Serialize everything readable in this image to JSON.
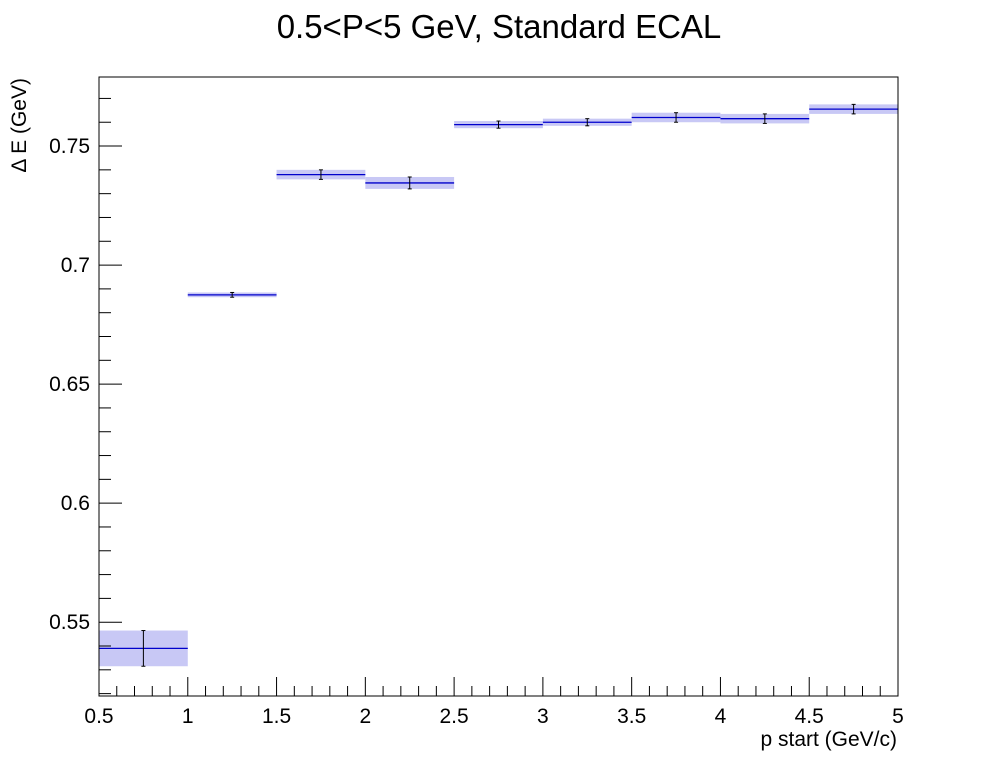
{
  "chart_data": {
    "type": "scatter",
    "title": "0.5<P<5 GeV, Standard ECAL",
    "xlabel": "p start (GeV/c)",
    "ylabel": "Δ E (GeV)",
    "xlim": [
      0.5,
      5
    ],
    "ylim": [
      0.519,
      0.779
    ],
    "x_ticks": [
      "0.5",
      "1",
      "1.5",
      "2",
      "2.5",
      "3",
      "3.5",
      "4",
      "4.5",
      "5"
    ],
    "y_ticks": [
      "0.55",
      "0.6",
      "0.65",
      "0.7",
      "0.75"
    ],
    "grid": false,
    "colors": {
      "band": "#c8c8f5",
      "line": "#0000cc",
      "error": "#000000"
    },
    "points": [
      {
        "x_low": 0.5,
        "x_high": 1.0,
        "y": 0.539,
        "yerr": 0.0075,
        "sys": 0.0075
      },
      {
        "x_low": 1.0,
        "x_high": 1.5,
        "y": 0.6875,
        "yerr": 0.001,
        "sys": 0.001
      },
      {
        "x_low": 1.5,
        "x_high": 2.0,
        "y": 0.738,
        "yerr": 0.002,
        "sys": 0.002
      },
      {
        "x_low": 2.0,
        "x_high": 2.5,
        "y": 0.7345,
        "yerr": 0.0025,
        "sys": 0.0025
      },
      {
        "x_low": 2.5,
        "x_high": 3.0,
        "y": 0.759,
        "yerr": 0.0015,
        "sys": 0.0015
      },
      {
        "x_low": 3.0,
        "x_high": 3.5,
        "y": 0.76,
        "yerr": 0.0015,
        "sys": 0.0015
      },
      {
        "x_low": 3.5,
        "x_high": 4.0,
        "y": 0.762,
        "yerr": 0.002,
        "sys": 0.002
      },
      {
        "x_low": 4.0,
        "x_high": 4.5,
        "y": 0.7615,
        "yerr": 0.002,
        "sys": 0.002
      },
      {
        "x_low": 4.5,
        "x_high": 5.0,
        "y": 0.7655,
        "yerr": 0.002,
        "sys": 0.002
      }
    ]
  }
}
